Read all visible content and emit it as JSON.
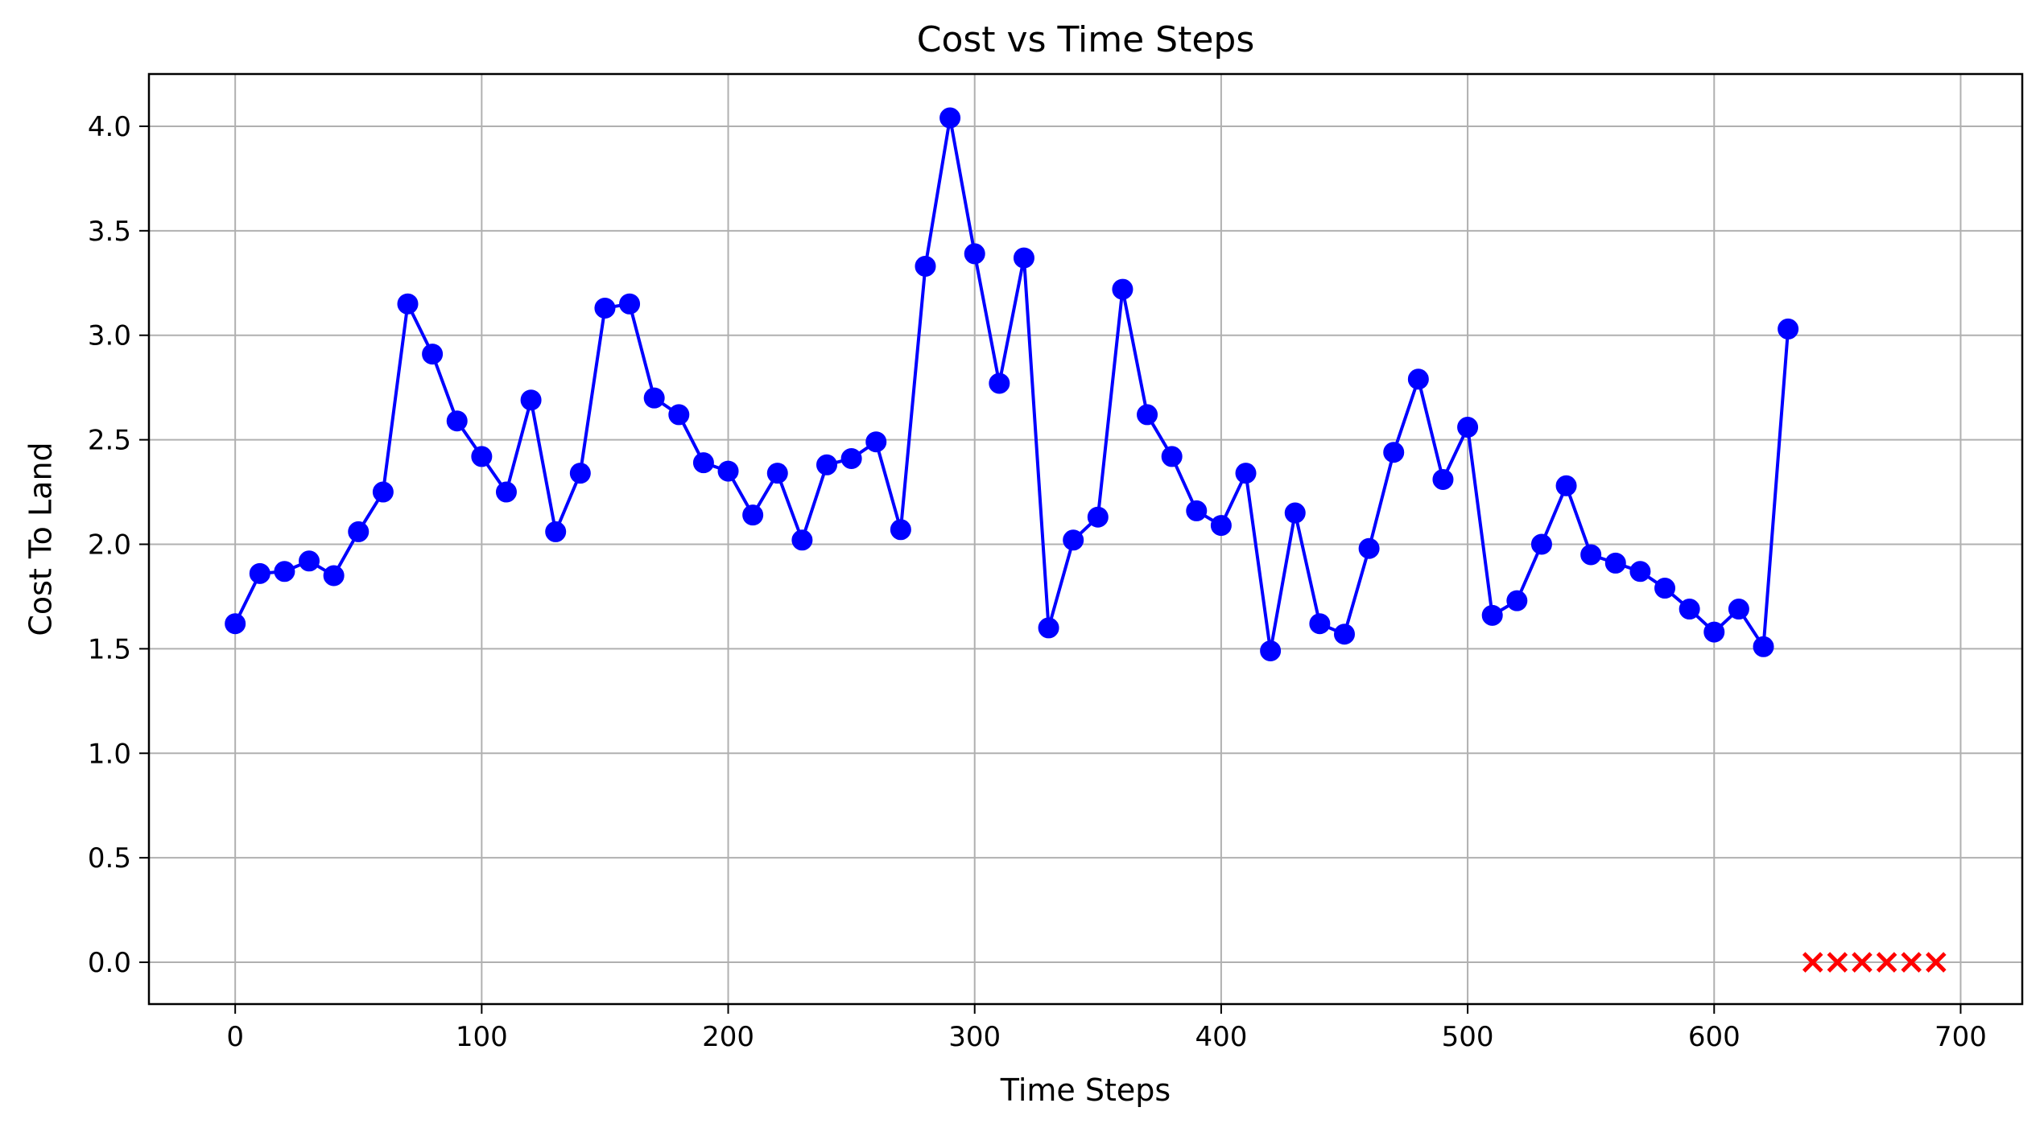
{
  "chart_data": {
    "type": "line",
    "title": "Cost vs Time Steps",
    "xlabel": "Time Steps",
    "ylabel": "Cost To Land",
    "xlim": [
      -35,
      725
    ],
    "ylim": [
      -0.2,
      4.25
    ],
    "xticks": [
      0,
      100,
      200,
      300,
      400,
      500,
      600,
      700
    ],
    "xtick_labels": [
      "0",
      "100",
      "200",
      "300",
      "400",
      "500",
      "600",
      "700"
    ],
    "yticks": [
      0.0,
      0.5,
      1.0,
      1.5,
      2.0,
      2.5,
      3.0,
      3.5,
      4.0
    ],
    "ytick_labels": [
      "0.0",
      "0.5",
      "1.0",
      "1.5",
      "2.0",
      "2.5",
      "3.0",
      "3.5",
      "4.0"
    ],
    "grid": true,
    "series": [
      {
        "color": "#0000ff",
        "marker": "circle",
        "line": true,
        "x": [
          0,
          10,
          20,
          30,
          40,
          50,
          60,
          70,
          80,
          90,
          100,
          110,
          120,
          130,
          140,
          150,
          160,
          170,
          180,
          190,
          200,
          210,
          220,
          230,
          240,
          250,
          260,
          270,
          280,
          290,
          300,
          310,
          320,
          330,
          340,
          350,
          360,
          370,
          380,
          390,
          400,
          410,
          420,
          430,
          440,
          450,
          460,
          470,
          480,
          490,
          500,
          510,
          520,
          530,
          540,
          550,
          560,
          570,
          580,
          590,
          600,
          610,
          620,
          630
        ],
        "y": [
          1.62,
          1.86,
          1.87,
          1.92,
          1.85,
          2.06,
          2.25,
          3.15,
          2.91,
          2.59,
          2.42,
          2.25,
          2.69,
          2.06,
          2.34,
          3.13,
          3.15,
          2.7,
          2.62,
          2.39,
          2.35,
          2.14,
          2.34,
          2.02,
          2.38,
          2.41,
          2.49,
          2.07,
          3.33,
          4.04,
          3.39,
          2.77,
          3.37,
          1.6,
          2.02,
          2.13,
          3.22,
          2.62,
          2.42,
          2.16,
          2.09,
          2.34,
          1.49,
          2.15,
          1.62,
          1.57,
          1.98,
          2.44,
          2.79,
          2.31,
          2.56,
          1.66,
          1.73,
          2.0,
          2.28,
          1.95,
          1.91,
          1.87,
          1.79,
          1.69,
          1.58,
          1.69,
          1.51,
          3.03
        ]
      },
      {
        "color": "#ff0000",
        "marker": "x",
        "line": false,
        "x": [
          640,
          650,
          660,
          670,
          680,
          690
        ],
        "y": [
          0,
          0,
          0,
          0,
          0,
          0
        ]
      }
    ]
  }
}
